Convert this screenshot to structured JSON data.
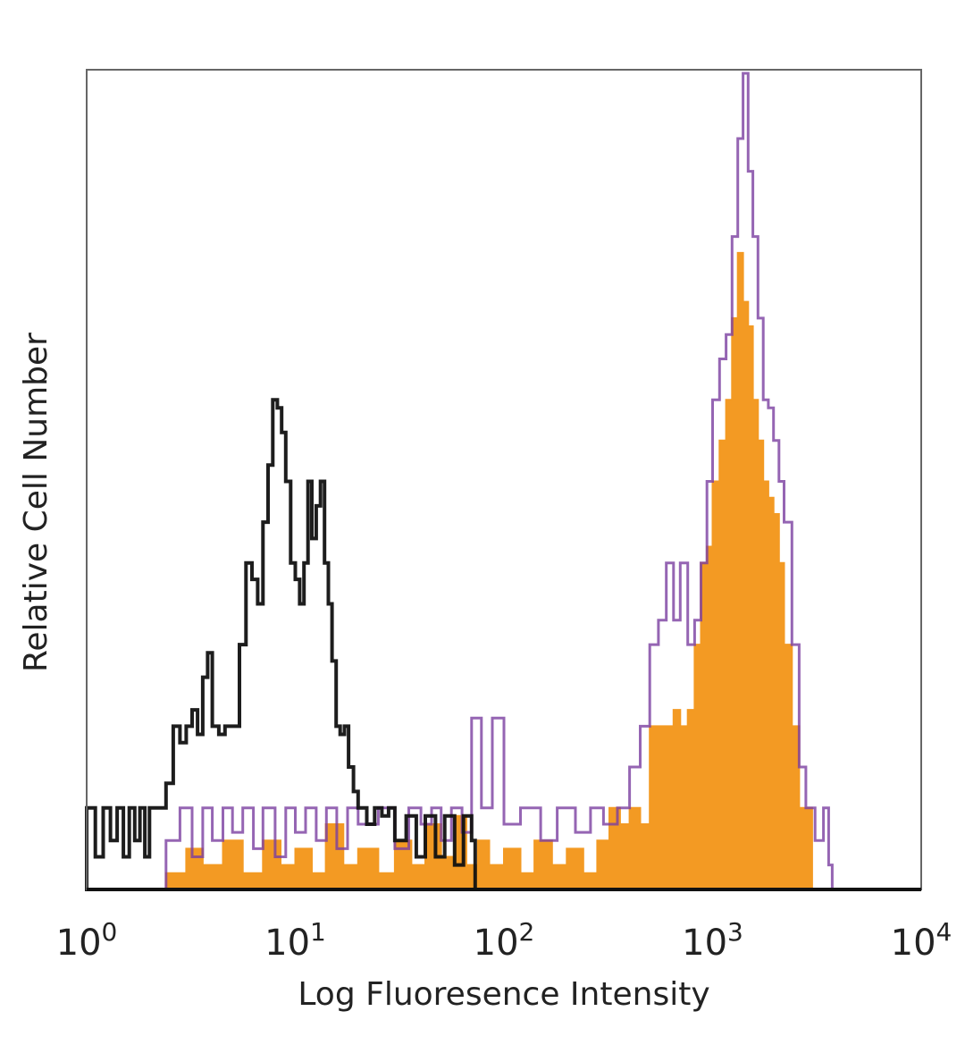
{
  "chart_data": {
    "type": "histogram",
    "title": "",
    "xlabel": "Log Fluoresence Intensity",
    "ylabel": "Relative Cell Number",
    "x_scale": "log",
    "xlim": [
      1,
      10000
    ],
    "ylim": [
      0,
      100
    ],
    "grid": false,
    "legend": "none",
    "x_ticks": [
      {
        "base": "10",
        "exp": "0",
        "value": 1
      },
      {
        "base": "10",
        "exp": "1",
        "value": 10
      },
      {
        "base": "10",
        "exp": "2",
        "value": 100
      },
      {
        "base": "10",
        "exp": "3",
        "value": 1000
      },
      {
        "base": "10",
        "exp": "4",
        "value": 10000
      }
    ],
    "series": [
      {
        "style": "black-outline",
        "color": "#111111",
        "points": [
          [
            1.0,
            10
          ],
          [
            1.1,
            4
          ],
          [
            1.2,
            10
          ],
          [
            1.3,
            6
          ],
          [
            1.4,
            10
          ],
          [
            1.5,
            4
          ],
          [
            1.6,
            10
          ],
          [
            1.7,
            6
          ],
          [
            1.8,
            10
          ],
          [
            1.9,
            4
          ],
          [
            2.0,
            10
          ],
          [
            2.2,
            10
          ],
          [
            2.4,
            13
          ],
          [
            2.6,
            20
          ],
          [
            2.8,
            18
          ],
          [
            3.0,
            20
          ],
          [
            3.2,
            22
          ],
          [
            3.4,
            19
          ],
          [
            3.6,
            26
          ],
          [
            3.8,
            29
          ],
          [
            4.0,
            20
          ],
          [
            4.3,
            19
          ],
          [
            4.6,
            20
          ],
          [
            5.0,
            20
          ],
          [
            5.4,
            30
          ],
          [
            5.8,
            40
          ],
          [
            6.2,
            38
          ],
          [
            6.6,
            35
          ],
          [
            7.0,
            45
          ],
          [
            7.4,
            52
          ],
          [
            7.8,
            60
          ],
          [
            8.2,
            59
          ],
          [
            8.6,
            56
          ],
          [
            9.0,
            50
          ],
          [
            9.5,
            40
          ],
          [
            10.0,
            38
          ],
          [
            10.5,
            35
          ],
          [
            11.0,
            40
          ],
          [
            11.5,
            50
          ],
          [
            12.0,
            43
          ],
          [
            12.6,
            47
          ],
          [
            13.2,
            50
          ],
          [
            13.8,
            40
          ],
          [
            14.4,
            35
          ],
          [
            15.0,
            28
          ],
          [
            15.7,
            20
          ],
          [
            16.4,
            19
          ],
          [
            17.2,
            20
          ],
          [
            18.0,
            15
          ],
          [
            19.0,
            12
          ],
          [
            20.0,
            10
          ],
          [
            22.0,
            8
          ],
          [
            24.0,
            10
          ],
          [
            26.0,
            9
          ],
          [
            28.0,
            10
          ],
          [
            30.0,
            6
          ],
          [
            34.0,
            9
          ],
          [
            38.0,
            4
          ],
          [
            42.0,
            9
          ],
          [
            47.0,
            4
          ],
          [
            52.0,
            9
          ],
          [
            58.0,
            3
          ],
          [
            64.0,
            9
          ],
          [
            70.0,
            6
          ]
        ]
      },
      {
        "style": "purple-outline",
        "color": "#7b3fa0",
        "points": [
          [
            2.4,
            6
          ],
          [
            2.8,
            10
          ],
          [
            3.2,
            4
          ],
          [
            3.6,
            10
          ],
          [
            4.0,
            6
          ],
          [
            4.5,
            10
          ],
          [
            5.0,
            7
          ],
          [
            5.6,
            10
          ],
          [
            6.3,
            5
          ],
          [
            7.0,
            10
          ],
          [
            8.0,
            4
          ],
          [
            9.0,
            10
          ],
          [
            10.0,
            7
          ],
          [
            11.2,
            10
          ],
          [
            12.6,
            6
          ],
          [
            14.1,
            10
          ],
          [
            15.8,
            5
          ],
          [
            17.8,
            10
          ],
          [
            20.0,
            8
          ],
          [
            25.0,
            10
          ],
          [
            30.0,
            5
          ],
          [
            35.0,
            10
          ],
          [
            40.0,
            8
          ],
          [
            45.0,
            10
          ],
          [
            50.0,
            6
          ],
          [
            56.0,
            10
          ],
          [
            63.0,
            7
          ],
          [
            70.0,
            21
          ],
          [
            78.0,
            10
          ],
          [
            88.0,
            21
          ],
          [
            100.0,
            8
          ],
          [
            120.0,
            10
          ],
          [
            150.0,
            6
          ],
          [
            180.0,
            10
          ],
          [
            220.0,
            7
          ],
          [
            260.0,
            10
          ],
          [
            300.0,
            8
          ],
          [
            350.0,
            10
          ],
          [
            400.0,
            15
          ],
          [
            450.0,
            20
          ],
          [
            500.0,
            30
          ],
          [
            550.0,
            33
          ],
          [
            600.0,
            40
          ],
          [
            650.0,
            33
          ],
          [
            700.0,
            40
          ],
          [
            760.0,
            30
          ],
          [
            820.0,
            33
          ],
          [
            880.0,
            40
          ],
          [
            940.0,
            50
          ],
          [
            1000.0,
            60
          ],
          [
            1080.0,
            65
          ],
          [
            1160.0,
            68
          ],
          [
            1240.0,
            80
          ],
          [
            1320.0,
            92
          ],
          [
            1400.0,
            100
          ],
          [
            1480.0,
            88
          ],
          [
            1560.0,
            80
          ],
          [
            1650.0,
            70
          ],
          [
            1750.0,
            60
          ],
          [
            1850.0,
            59
          ],
          [
            1960.0,
            55
          ],
          [
            2080.0,
            50
          ],
          [
            2200.0,
            45
          ],
          [
            2400.0,
            30
          ],
          [
            2600.0,
            15
          ],
          [
            2800.0,
            10
          ],
          [
            3100.0,
            6
          ],
          [
            3400.0,
            10
          ],
          [
            3600.0,
            3
          ]
        ]
      },
      {
        "style": "orange-filled",
        "color": "#f39a23",
        "points": [
          [
            2.4,
            2
          ],
          [
            3.0,
            5
          ],
          [
            3.6,
            3
          ],
          [
            4.5,
            6
          ],
          [
            5.6,
            2
          ],
          [
            7.0,
            6
          ],
          [
            8.5,
            3
          ],
          [
            10.0,
            5
          ],
          [
            12.0,
            2
          ],
          [
            14.0,
            8
          ],
          [
            17.0,
            3
          ],
          [
            20.0,
            5
          ],
          [
            25.0,
            2
          ],
          [
            30.0,
            6
          ],
          [
            36.0,
            3
          ],
          [
            42.0,
            8
          ],
          [
            50.0,
            4
          ],
          [
            58.0,
            9
          ],
          [
            66.0,
            3
          ],
          [
            75.0,
            6
          ],
          [
            85.0,
            3
          ],
          [
            100.0,
            5
          ],
          [
            120.0,
            2
          ],
          [
            140.0,
            6
          ],
          [
            170.0,
            3
          ],
          [
            200.0,
            5
          ],
          [
            240.0,
            2
          ],
          [
            280.0,
            6
          ],
          [
            320.0,
            10
          ],
          [
            360.0,
            8
          ],
          [
            400.0,
            10
          ],
          [
            450.0,
            8
          ],
          [
            500.0,
            20
          ],
          [
            550.0,
            20
          ],
          [
            600.0,
            20
          ],
          [
            650.0,
            22
          ],
          [
            700.0,
            20
          ],
          [
            760.0,
            22
          ],
          [
            820.0,
            30
          ],
          [
            880.0,
            40
          ],
          [
            940.0,
            42
          ],
          [
            1000.0,
            50
          ],
          [
            1080.0,
            55
          ],
          [
            1160.0,
            60
          ],
          [
            1240.0,
            70
          ],
          [
            1320.0,
            78
          ],
          [
            1400.0,
            72
          ],
          [
            1480.0,
            69
          ],
          [
            1560.0,
            60
          ],
          [
            1650.0,
            55
          ],
          [
            1750.0,
            50
          ],
          [
            1850.0,
            48
          ],
          [
            1960.0,
            46
          ],
          [
            2080.0,
            40
          ],
          [
            2200.0,
            30
          ],
          [
            2400.0,
            20
          ],
          [
            2600.0,
            10
          ],
          [
            2800.0,
            10
          ],
          [
            3000.0,
            0
          ]
        ]
      }
    ]
  }
}
